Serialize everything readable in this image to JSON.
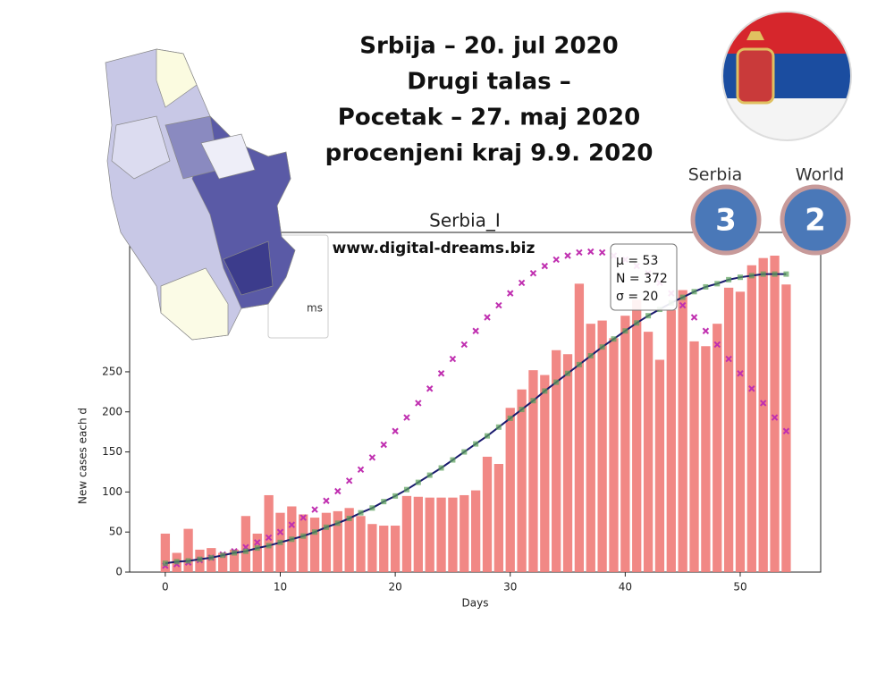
{
  "header": {
    "title_lines": [
      "Srbija – 20. jul 2020",
      "Drugi talas –",
      "Pocetak – 27. maj 2020",
      "procenjeni kraj 9.9. 2020"
    ],
    "website": "www.digital-dreams.biz"
  },
  "badges": [
    {
      "label": "Serbia",
      "rank": 3
    },
    {
      "label": "World",
      "rank": 2
    }
  ],
  "chart_data": {
    "type": "bar",
    "title": "Serbia_I",
    "xlabel": "Days",
    "ylabel": "New cases each d",
    "legend_text": "ms",
    "annotation": [
      "μ = 53",
      "N = 372",
      "σ = 20"
    ],
    "x": [
      0,
      1,
      2,
      3,
      4,
      5,
      6,
      7,
      8,
      9,
      10,
      11,
      12,
      13,
      14,
      15,
      16,
      17,
      18,
      19,
      20,
      21,
      22,
      23,
      24,
      25,
      26,
      27,
      28,
      29,
      30,
      31,
      32,
      33,
      34,
      35,
      36,
      37,
      38,
      39,
      40,
      41,
      42,
      43,
      44,
      45,
      46,
      47,
      48,
      49,
      50,
      51,
      52,
      53,
      54
    ],
    "values": [
      48,
      24,
      54,
      28,
      30,
      24,
      28,
      70,
      48,
      96,
      74,
      82,
      72,
      68,
      74,
      76,
      80,
      70,
      60,
      58,
      58,
      95,
      94,
      93,
      93,
      93,
      96,
      102,
      144,
      135,
      205,
      228,
      252,
      246,
      277,
      272,
      360,
      310,
      314,
      292,
      320,
      340,
      300,
      265,
      327,
      352,
      288,
      282,
      310,
      355,
      350,
      383,
      392,
      395,
      359
    ],
    "color": "#f07b78",
    "fit": {
      "color": "#1a1a6e",
      "marker_color": "#5aa05a",
      "values": [
        11,
        13,
        14,
        16,
        18,
        21,
        24,
        26,
        30,
        33,
        37,
        41,
        45,
        50,
        56,
        61,
        67,
        74,
        80,
        88,
        95,
        103,
        112,
        121,
        130,
        140,
        150,
        160,
        170,
        181,
        192,
        203,
        214,
        226,
        237,
        248,
        259,
        270,
        281,
        291,
        301,
        311,
        320,
        328,
        336,
        343,
        350,
        356,
        360,
        365,
        368,
        370,
        372,
        372,
        372
      ]
    },
    "projection": {
      "color": "#c030b0",
      "values": [
        8,
        10,
        12,
        15,
        18,
        22,
        26,
        31,
        37,
        43,
        50,
        59,
        68,
        78,
        89,
        101,
        114,
        128,
        143,
        159,
        176,
        193,
        211,
        229,
        248,
        266,
        284,
        301,
        318,
        333,
        348,
        361,
        373,
        382,
        390,
        395,
        399,
        400,
        399,
        395,
        390,
        382,
        373,
        361,
        348,
        333,
        318,
        301,
        284,
        266,
        248,
        229,
        211,
        193,
        176
      ]
    },
    "xlim": [
      -3.1,
      57
    ],
    "ylim": [
      0,
      424
    ],
    "xticks": [
      0,
      10,
      20,
      30,
      40,
      50
    ],
    "yticks": [
      0,
      50,
      100,
      150,
      200,
      250
    ]
  }
}
